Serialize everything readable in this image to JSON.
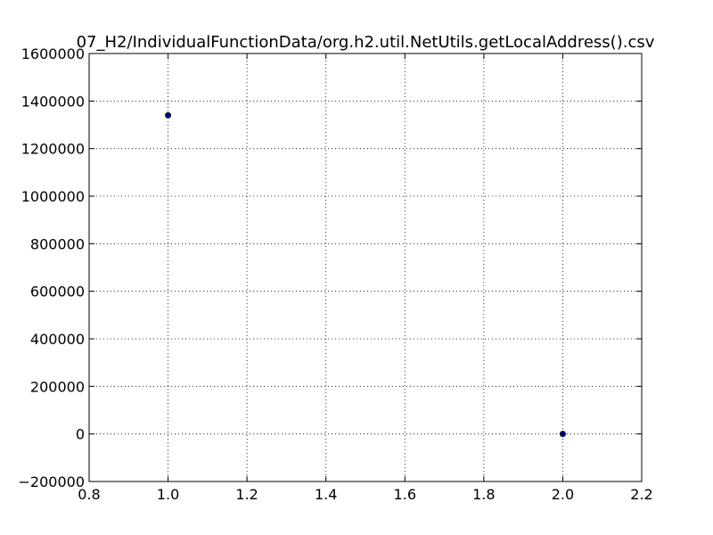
{
  "chart_data": {
    "type": "scatter",
    "title": "07_H2/IndividualFunctionData/org.h2.util.NetUtils.getLocalAddress().csv",
    "xlabel": "",
    "ylabel": "",
    "xlim": [
      0.8,
      2.2
    ],
    "ylim": [
      -200000,
      1600000
    ],
    "x_ticks": [
      0.8,
      1.0,
      1.2,
      1.4,
      1.6,
      1.8,
      2.0,
      2.2
    ],
    "x_tick_labels": [
      "0.8",
      "1.0",
      "1.2",
      "1.4",
      "1.6",
      "1.8",
      "2.0",
      "2.2"
    ],
    "y_ticks": [
      -200000,
      0,
      200000,
      400000,
      600000,
      800000,
      1000000,
      1200000,
      1400000,
      1600000
    ],
    "y_tick_labels": [
      "−200000",
      "0",
      "200000",
      "400000",
      "600000",
      "800000",
      "1000000",
      "1200000",
      "1400000",
      "1600000"
    ],
    "grid": true,
    "series": [
      {
        "x": [
          1.0,
          2.0
        ],
        "y": [
          1340000,
          0
        ],
        "color": "#00007f"
      }
    ]
  }
}
